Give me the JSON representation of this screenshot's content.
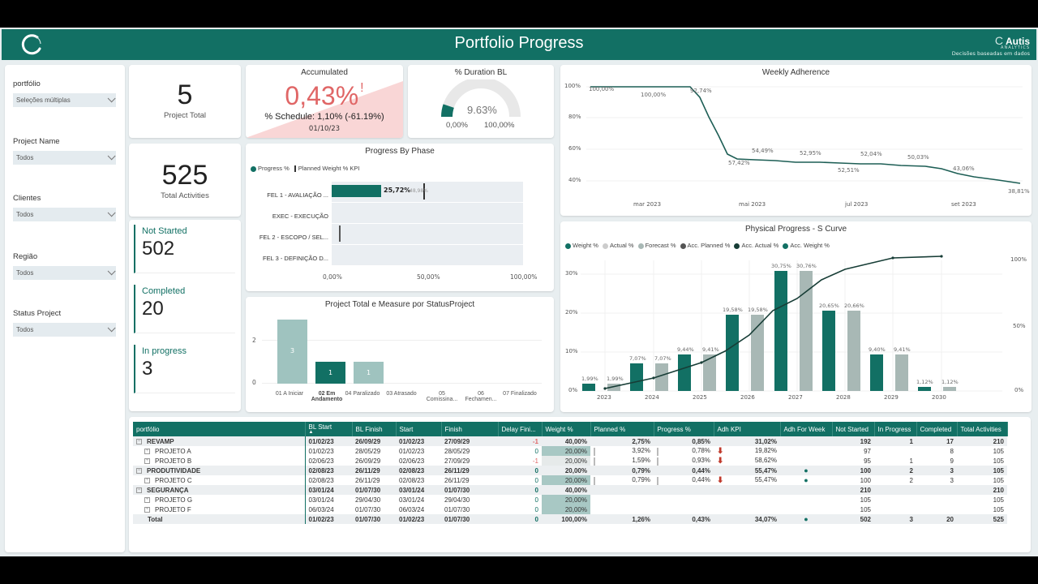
{
  "header": {
    "title": "Portfolio Progress",
    "brand_name": "Autis",
    "brand_prefix": "C",
    "brand_sub": "ANALYTICS",
    "brand_tagline": "Decisões baseadas em dados"
  },
  "filters": [
    {
      "label": "portfólio",
      "value": "Seleções múltiplas"
    },
    {
      "label": "Project Name",
      "value": "Todos"
    },
    {
      "label": "Clientes",
      "value": "Todos"
    },
    {
      "label": "Região",
      "value": "Todos"
    },
    {
      "label": "Status Project",
      "value": "Todos"
    }
  ],
  "kpis": {
    "project_total": {
      "value": "5",
      "label": "Project Total"
    },
    "total_activities": {
      "value": "525",
      "label": "Total Activities"
    },
    "not_started": {
      "label": "Not Started",
      "value": "502"
    },
    "completed": {
      "label": "Completed",
      "value": "20"
    },
    "in_progress": {
      "label": "In progress",
      "value": "3"
    }
  },
  "accumulated": {
    "title": "Accumulated",
    "value": "0,43%",
    "alert": "!",
    "schedule": "% Schedule: 1,10% (-61.19%)",
    "date": "01/10/23",
    "color": "#e06666"
  },
  "duration_gauge": {
    "title": "% Duration BL",
    "value": "9.63%",
    "min": "0,00%",
    "max": "100,00%",
    "percent": 9.63
  },
  "colors": {
    "primary": "#127064",
    "light_bar": "#a8bfbc",
    "negative": "#e06666",
    "arrow_down": "#c0392b"
  },
  "chart_data": [
    {
      "type": "bar",
      "title": "Progress By Phase",
      "orientation": "horizontal",
      "legend": [
        "Progress %",
        "Planned Weight % KPI"
      ],
      "categories": [
        "FEL 1 - AVALIAÇÃO ...",
        "EXEC - EXECUÇÃO",
        "FEL 2 - ESCOPO / SEL...",
        "FEL 3 - DEFINIÇÃO D..."
      ],
      "series": [
        {
          "name": "Progress %",
          "values": [
            25.72,
            0,
            0,
            0
          ],
          "labels": [
            "25,72%",
            "",
            "",
            ""
          ]
        },
        {
          "name": "Planned Weight % KPI",
          "values": [
            48.98,
            null,
            4.0,
            null
          ],
          "labels": [
            "48,98%",
            "",
            "",
            ""
          ]
        }
      ],
      "xticks": [
        "0,00%",
        "50,00%",
        "100,00%"
      ],
      "xlim": [
        0,
        100
      ]
    },
    {
      "type": "bar",
      "title": "Project Total e Measure por StatusProject",
      "categories": [
        "01 A Iniciar",
        "02 Em Andamento",
        "04 Paralizado",
        "03 Atrasado",
        "05 Comissina...",
        "06 Fechamen...",
        "07 Finalizado"
      ],
      "values": [
        3,
        1,
        1,
        0,
        0,
        0,
        0
      ],
      "highlight_index": 1,
      "yticks": [
        "0",
        "2"
      ],
      "ylim": [
        0,
        3
      ]
    },
    {
      "type": "line",
      "title": "Weekly Adherence",
      "x": [
        "fev 2023",
        "mar 2023",
        "abr 2023",
        "abr 2023b",
        "mai 2023",
        "jun 2023",
        "jul 2023",
        "jul 2023b",
        "ago 2023",
        "set 2023",
        "out 2023"
      ],
      "values": [
        100.0,
        100.0,
        92.74,
        57.42,
        54.49,
        52.95,
        52.51,
        52.04,
        50.03,
        43.06,
        38.81
      ],
      "labels": [
        "100,00%",
        "100,00%",
        "92,74%",
        "57,42%",
        "54,49%",
        "52,95%",
        "52,51%",
        "52,04%",
        "50,03%",
        "43,06%",
        "38,81%"
      ],
      "xticks": [
        "mar 2023",
        "mai 2023",
        "jul 2023",
        "set 2023"
      ],
      "yticks": [
        "40%",
        "60%",
        "80%",
        "100%"
      ],
      "ylim": [
        35,
        102
      ]
    },
    {
      "type": "bar",
      "title": "Physical Progress - S Curve",
      "legend": [
        "Weight %",
        "Actual %",
        "Forecast %",
        "Acc. Planned %",
        "Acc. Actual %",
        "Acc. Weight %"
      ],
      "categories": [
        "2023",
        "2024",
        "2025",
        "2026",
        "2027",
        "2028",
        "2029",
        "2030"
      ],
      "series": [
        {
          "name": "Weight %",
          "values": [
            1.99,
            7.07,
            9.44,
            19.58,
            30.75,
            20.65,
            9.4,
            1.12
          ],
          "labels": [
            "1,99%",
            "7,07%",
            "9,44%",
            "19,58%",
            "30,75%",
            "20,65%",
            "9,40%",
            "1,12%"
          ]
        },
        {
          "name": "Forecast %",
          "values": [
            1.99,
            7.07,
            9.41,
            19.58,
            30.76,
            20.66,
            9.41,
            1.12
          ],
          "labels": [
            "1,99%",
            "7,07%",
            "9,41%",
            "19,58%",
            "30,76%",
            "20,66%",
            "9,41%",
            "1,12%"
          ]
        },
        {
          "name": "Acc. Weight %",
          "values": [
            1.99,
            9.06,
            18.5,
            38.08,
            68.83,
            89.48,
            98.88,
            100
          ]
        }
      ],
      "yticks_left": [
        "0%",
        "10%",
        "20%",
        "30%"
      ],
      "yticks_right": [
        "0%",
        "50%",
        "100%"
      ],
      "ylim": [
        0,
        34
      ]
    }
  ],
  "table": {
    "columns": [
      "portfólio",
      "BL Start",
      "BL Finish",
      "Start",
      "Finish",
      "Delay Fini...",
      "Weight %",
      "Planned %",
      "Progress %",
      "Adh KPI",
      "Adh For Week",
      "Not Started",
      "In Progress",
      "Completed",
      "Total Activities"
    ],
    "sort_indicator": "▲",
    "rows": [
      {
        "type": "grp",
        "name": "REVAMP",
        "bl_start": "01/02/23",
        "bl_finish": "26/09/29",
        "start": "01/02/23",
        "finish": "27/09/29",
        "delay": "-1",
        "weight": "40,00%",
        "planned": "2,75%",
        "progress": "0,85%",
        "arrow": "",
        "adh_kpi": "31,02%",
        "adh_week": "",
        "not_started": "192",
        "in_progress": "1",
        "completed": "17",
        "total": "210"
      },
      {
        "type": "child",
        "name": "PROJETO A",
        "bl_start": "01/02/23",
        "bl_finish": "28/05/29",
        "start": "01/02/23",
        "finish": "28/05/29",
        "delay": "0",
        "weight": "20,00%",
        "planned": "3,92%",
        "progress": "0,78%",
        "arrow": "🡇",
        "adh_kpi": "19,82%",
        "adh_week": "",
        "not_started": "97",
        "in_progress": "",
        "completed": "8",
        "total": "105"
      },
      {
        "type": "child",
        "name": "PROJETO B",
        "bl_start": "02/06/23",
        "bl_finish": "26/09/29",
        "start": "02/06/23",
        "finish": "27/09/29",
        "delay": "-1",
        "weight": "20,00%",
        "planned": "1,59%",
        "progress": "0,93%",
        "arrow": "🡇",
        "adh_kpi": "58,62%",
        "adh_week": "",
        "not_started": "95",
        "in_progress": "1",
        "completed": "9",
        "total": "105"
      },
      {
        "type": "grp",
        "name": "PRODUTIVIDADE",
        "bl_start": "02/08/23",
        "bl_finish": "26/11/29",
        "start": "02/08/23",
        "finish": "26/11/29",
        "delay": "0",
        "weight": "20,00%",
        "planned": "0,79%",
        "progress": "0,44%",
        "arrow": "",
        "adh_kpi": "55,47%",
        "adh_week": "●",
        "not_started": "100",
        "in_progress": "2",
        "completed": "3",
        "total": "105"
      },
      {
        "type": "child",
        "name": "PROJETO C",
        "bl_start": "02/08/23",
        "bl_finish": "26/11/29",
        "start": "02/08/23",
        "finish": "26/11/29",
        "delay": "0",
        "weight": "20,00%",
        "planned": "0,79%",
        "progress": "0,44%",
        "arrow": "🡇",
        "adh_kpi": "55,47%",
        "adh_week": "●",
        "not_started": "100",
        "in_progress": "2",
        "completed": "3",
        "total": "105"
      },
      {
        "type": "grp",
        "name": "SEGURANÇA",
        "bl_start": "03/01/24",
        "bl_finish": "01/07/30",
        "start": "03/01/24",
        "finish": "01/07/30",
        "delay": "0",
        "weight": "40,00%",
        "planned": "",
        "progress": "",
        "arrow": "",
        "adh_kpi": "",
        "adh_week": "",
        "not_started": "210",
        "in_progress": "",
        "completed": "",
        "total": "210"
      },
      {
        "type": "child",
        "name": "PROJETO G",
        "bl_start": "03/01/24",
        "bl_finish": "29/04/30",
        "start": "03/01/24",
        "finish": "29/04/30",
        "delay": "0",
        "weight": "20,00%",
        "planned": "",
        "progress": "",
        "arrow": "",
        "adh_kpi": "",
        "adh_week": "",
        "not_started": "105",
        "in_progress": "",
        "completed": "",
        "total": "105"
      },
      {
        "type": "child",
        "name": "PROJETO F",
        "bl_start": "06/03/24",
        "bl_finish": "01/07/30",
        "start": "06/03/24",
        "finish": "01/07/30",
        "delay": "0",
        "weight": "20,00%",
        "planned": "",
        "progress": "",
        "arrow": "",
        "adh_kpi": "",
        "adh_week": "",
        "not_started": "105",
        "in_progress": "",
        "completed": "",
        "total": "105"
      },
      {
        "type": "total",
        "name": "Total",
        "bl_start": "01/02/23",
        "bl_finish": "01/07/30",
        "start": "01/02/23",
        "finish": "01/07/30",
        "delay": "0",
        "weight": "100,00%",
        "planned": "1,26%",
        "progress": "0,43%",
        "arrow": "",
        "adh_kpi": "34,07%",
        "adh_week": "●",
        "not_started": "502",
        "in_progress": "3",
        "completed": "20",
        "total": "525"
      }
    ]
  }
}
